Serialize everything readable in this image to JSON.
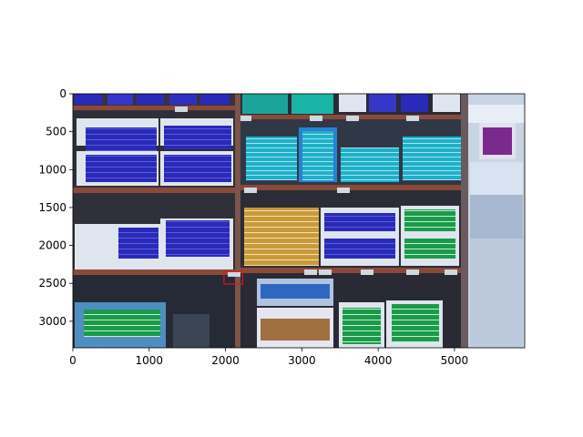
{
  "chart_data": {
    "type": "image",
    "xlim": [
      0,
      5920
    ],
    "ylim": [
      3350,
      0
    ],
    "x_ticks": [
      0,
      1000,
      2000,
      3000,
      4000,
      5000
    ],
    "y_ticks": [
      0,
      500,
      1000,
      1500,
      2000,
      2500,
      3000
    ],
    "grid": false,
    "title": "",
    "xlabel": "",
    "ylabel": "",
    "annotation_box": {
      "x0": 1980,
      "y0": 2345,
      "x1": 2225,
      "y1": 2510,
      "color": "#e0151b"
    }
  },
  "image": {
    "description_icon": "supermarket-shelf-photo",
    "colors": {
      "shelf_bar": "#8a4a3a",
      "blue_box": "#2a2ab8",
      "teal_box": "#1fb0c8",
      "gold_box": "#c89a3a",
      "green_box": "#1a9a4a",
      "display_white": "#dfe5ee"
    }
  }
}
